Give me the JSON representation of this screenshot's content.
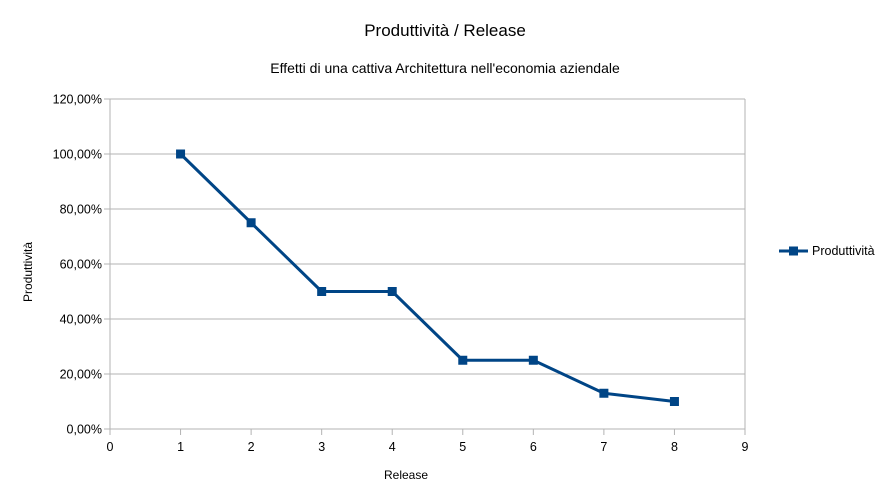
{
  "chart_data": {
    "type": "line",
    "title": "Produttività / Release",
    "subtitle": "Effetti di una cattiva Architettura nell'economia aziendale",
    "xlabel": "Release",
    "ylabel": "Produttività",
    "xlim": [
      0,
      9
    ],
    "ylim": [
      0,
      1.2
    ],
    "x_ticks": [
      "0",
      "1",
      "2",
      "3",
      "4",
      "5",
      "6",
      "7",
      "8",
      "9"
    ],
    "y_ticks": [
      "0,00%",
      "20,00%",
      "40,00%",
      "60,00%",
      "80,00%",
      "100,00%",
      "120,00%"
    ],
    "grid": "horizontal",
    "legend_position": "right",
    "series": [
      {
        "name": "Produttività",
        "color": "#004586",
        "marker": "square",
        "x": [
          1,
          2,
          3,
          4,
          5,
          6,
          7,
          8
        ],
        "values": [
          1.0,
          0.75,
          0.5,
          0.5,
          0.25,
          0.25,
          0.13,
          0.1
        ]
      }
    ]
  }
}
